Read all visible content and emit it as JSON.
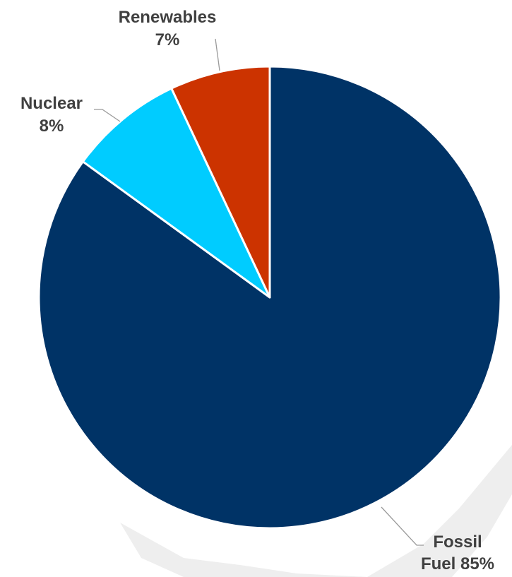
{
  "chart_data": {
    "type": "pie",
    "title": "",
    "slices": [
      {
        "label_line1": "Fossil",
        "label_line2": "Fuel 85%",
        "value": 85,
        "color": "#003366"
      },
      {
        "label_line1": "Nuclear",
        "label_line2": "8%",
        "value": 8,
        "color": "#00CCFF"
      },
      {
        "label_line1": "Renewables",
        "label_line2": "7%",
        "value": 7,
        "color": "#CC3300"
      }
    ],
    "legend": "none",
    "grid": false
  }
}
